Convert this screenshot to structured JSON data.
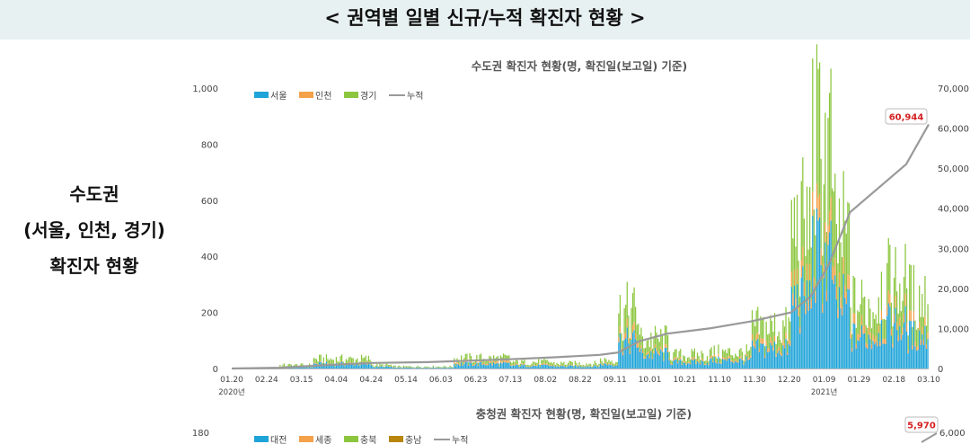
{
  "page": {
    "title": "< 권역별 일별 신규/누적 확진자 현황 >",
    "side_label": [
      "수도권",
      "(서울, 인천, 경기)",
      "확진자 현황"
    ]
  },
  "colors": {
    "seoul": "#1fa4d8",
    "incheon": "#f4a24a",
    "gyeonggi": "#8cc63f",
    "cumulative": "#999999",
    "callout": "#d42020"
  },
  "chart_data": [
    {
      "type": "bar",
      "stacked": true,
      "title": "수도권 확진자 현황(명, 확진일(보고일) 기준)",
      "ylim": [
        0,
        1000
      ],
      "yticks": [
        "0",
        "200",
        "400",
        "600",
        "800",
        "1,000"
      ],
      "y2lim": [
        0,
        70000
      ],
      "y2ticks": [
        "0",
        "10,000",
        "20,000",
        "30,000",
        "40,000",
        "50,000",
        "60,000",
        "70,000"
      ],
      "xticks": [
        "01.20",
        "02.24",
        "03.15",
        "04.04",
        "04.24",
        "05.14",
        "06.03",
        "06.23",
        "07.13",
        "08.02",
        "08.22",
        "09.11",
        "10.01",
        "10.21",
        "11.10",
        "11.30",
        "12.20",
        "01.09",
        "01.29",
        "02.18",
        "03.10"
      ],
      "xtick_sub": {
        "01.20": "2020년",
        "01.09": "2021년"
      },
      "legend": [
        "서울",
        "인천",
        "경기",
        "누적"
      ],
      "legend_position": "top-left",
      "cumulative_callout": "60,944",
      "segments": [
        {
          "start": 0,
          "end": 34,
          "seoul": 0,
          "incheon": 0,
          "gyeonggi": 0
        },
        {
          "start": 34,
          "end": 58,
          "seoul": 5,
          "incheon": 1,
          "gyeonggi": 6
        },
        {
          "start": 58,
          "end": 100,
          "seoul": 16,
          "incheon": 2,
          "gyeonggi": 15
        },
        {
          "start": 100,
          "end": 114,
          "seoul": 6,
          "incheon": 1,
          "gyeonggi": 5
        },
        {
          "start": 114,
          "end": 158,
          "seoul": 3,
          "incheon": 1,
          "gyeonggi": 3
        },
        {
          "start": 158,
          "end": 198,
          "seoul": 16,
          "incheon": 6,
          "gyeonggi": 14
        },
        {
          "start": 198,
          "end": 228,
          "seoul": 10,
          "incheon": 3,
          "gyeonggi": 10
        },
        {
          "start": 228,
          "end": 262,
          "seoul": 8,
          "incheon": 2,
          "gyeonggi": 8
        },
        {
          "start": 262,
          "end": 275,
          "seoul": 15,
          "incheon": 3,
          "gyeonggi": 12
        },
        {
          "start": 275,
          "end": 290,
          "seoul": 95,
          "incheon": 20,
          "gyeonggi": 85
        },
        {
          "start": 290,
          "end": 312,
          "seoul": 50,
          "incheon": 8,
          "gyeonggi": 45
        },
        {
          "start": 312,
          "end": 340,
          "seoul": 22,
          "incheon": 5,
          "gyeonggi": 20
        },
        {
          "start": 340,
          "end": 370,
          "seoul": 28,
          "incheon": 6,
          "gyeonggi": 22
        },
        {
          "start": 370,
          "end": 398,
          "seoul": 70,
          "incheon": 15,
          "gyeonggi": 60
        },
        {
          "start": 398,
          "end": 412,
          "seoul": 240,
          "incheon": 45,
          "gyeonggi": 210
        },
        {
          "start": 412,
          "end": 428,
          "seoul": 380,
          "incheon": 60,
          "gyeonggi": 330
        },
        {
          "start": 428,
          "end": 440,
          "seoul": 220,
          "incheon": 40,
          "gyeonggi": 200
        },
        {
          "start": 440,
          "end": 460,
          "seoul": 110,
          "incheon": 25,
          "gyeonggi": 90
        },
        {
          "start": 460,
          "end": 480,
          "seoul": 150,
          "incheon": 30,
          "gyeonggi": 120
        },
        {
          "start": 480,
          "end": 496,
          "seoul": 115,
          "incheon": 25,
          "gyeonggi": 110
        }
      ],
      "cumulative": [
        {
          "day": 0,
          "value": 0
        },
        {
          "day": 35,
          "value": 200
        },
        {
          "day": 70,
          "value": 900
        },
        {
          "day": 100,
          "value": 1400
        },
        {
          "day": 140,
          "value": 1600
        },
        {
          "day": 198,
          "value": 2300
        },
        {
          "day": 230,
          "value": 2800
        },
        {
          "day": 262,
          "value": 3400
        },
        {
          "day": 275,
          "value": 4000
        },
        {
          "day": 290,
          "value": 6800
        },
        {
          "day": 310,
          "value": 8700
        },
        {
          "day": 340,
          "value": 10000
        },
        {
          "day": 370,
          "value": 11800
        },
        {
          "day": 398,
          "value": 14000
        },
        {
          "day": 412,
          "value": 18000
        },
        {
          "day": 425,
          "value": 26000
        },
        {
          "day": 440,
          "value": 39000
        },
        {
          "day": 460,
          "value": 45000
        },
        {
          "day": 480,
          "value": 51000
        },
        {
          "day": 496,
          "value": 60944
        }
      ]
    },
    {
      "type": "bar",
      "stacked": true,
      "title": "충청권 확진자 현황(명, 확진일(보고일) 기준)",
      "ylim_top_label": "180",
      "y2_top_label": "6,000",
      "legend": [
        "대전",
        "세종",
        "충북",
        "충남",
        "누적"
      ],
      "cumulative_callout": "5,970"
    }
  ]
}
